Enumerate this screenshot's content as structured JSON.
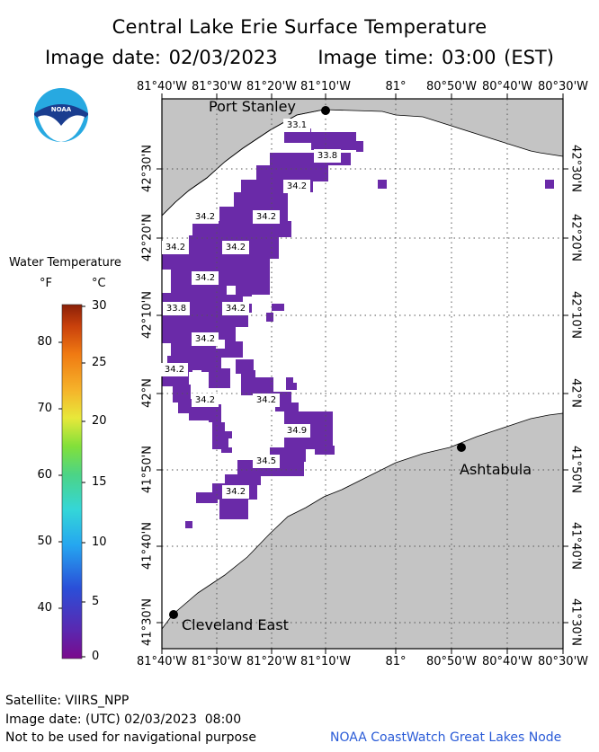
{
  "title": "Central Lake Erie Surface Temperature",
  "image_date_text": "Image date: 02/03/2023",
  "image_time_text": "Image time: 03:00 (EST)",
  "legend": {
    "title": "Water Temperature",
    "unit_f": "°F",
    "unit_c": "°C",
    "f_ticks": [
      "80",
      "70",
      "60",
      "50",
      "40"
    ],
    "c_ticks": [
      "30",
      "25",
      "20",
      "15",
      "10",
      "5",
      "0"
    ]
  },
  "longitude_labels": [
    "81°40'W",
    "81°30'W",
    "81°20'W",
    "81°10'W",
    "81°",
    "80°50'W",
    "80°40'W",
    "80°30'W"
  ],
  "latitude_labels": [
    "42°30'N",
    "42°20'N",
    "42°10'N",
    "42°N",
    "41°50'N",
    "41°40'N",
    "41°30'N"
  ],
  "cities": [
    "Port Stanley",
    "Ashtabula",
    "Cleveland East"
  ],
  "temperature_labels": [
    "33.1",
    "33.8",
    "34.2",
    "34.2",
    "34.2",
    "34.2",
    "34.2",
    "34.2",
    "33.8",
    "34.2",
    "34.2",
    "34.2",
    "34.2",
    "34.2",
    "34.9",
    "34.5",
    "34.2"
  ],
  "footer": {
    "satellite": "Satellite: VIIRS_NPP",
    "utc_date": "Image date: (UTC) 02/03/2023  08:00",
    "warning": "Not to be used for navigational purpose",
    "credit": "NOAA CoastWatch Great Lakes Node"
  },
  "colors": {
    "land": "#c4c4c4",
    "water": "#ffffff",
    "data": "#6a2aa8",
    "credit": "#2a5bd7"
  },
  "logo_text": "NOAA"
}
